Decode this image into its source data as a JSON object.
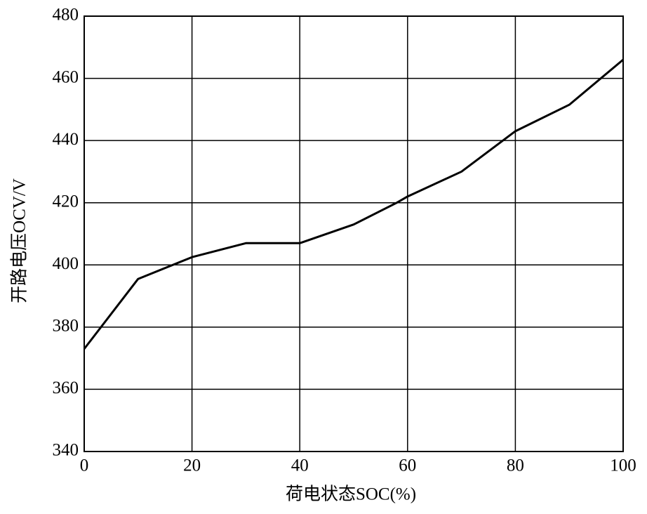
{
  "chart_data": {
    "type": "line",
    "x_label": "荷电状态SOC(%)",
    "y_label": "开路电压OCV/V",
    "x": [
      0,
      10,
      20,
      30,
      40,
      50,
      58,
      60,
      70,
      80,
      90,
      100
    ],
    "series": [
      {
        "name": "OCV",
        "color": "#000000",
        "values": [
          373,
          395.5,
          402.5,
          407,
          407,
          413,
          420,
          422,
          430,
          443,
          451.5,
          466
        ]
      }
    ],
    "xlim": [
      0,
      100
    ],
    "xticks": [
      0,
      20,
      40,
      60,
      80,
      100
    ],
    "ylim": [
      340,
      480
    ],
    "yticks": [
      340,
      360,
      380,
      400,
      420,
      440,
      460,
      480
    ],
    "grid": true
  }
}
